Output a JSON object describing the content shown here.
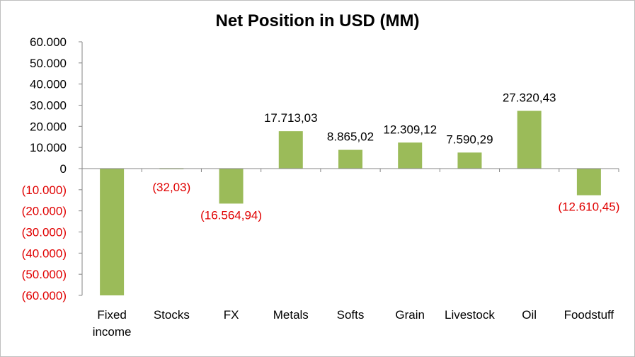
{
  "chart_data": {
    "type": "bar",
    "title": "Net Position in USD (MM)",
    "xlabel": "",
    "ylabel": "",
    "ylim": [
      -60000,
      60000
    ],
    "yticks": [
      {
        "value": 60000,
        "label": "60.000"
      },
      {
        "value": 50000,
        "label": "50.000"
      },
      {
        "value": 40000,
        "label": "40.000"
      },
      {
        "value": 30000,
        "label": "30.000"
      },
      {
        "value": 20000,
        "label": "20.000"
      },
      {
        "value": 10000,
        "label": "10.000"
      },
      {
        "value": 0,
        "label": "0"
      },
      {
        "value": -10000,
        "label": "(10.000)"
      },
      {
        "value": -20000,
        "label": "(20.000)"
      },
      {
        "value": -30000,
        "label": "(30.000)"
      },
      {
        "value": -40000,
        "label": "(40.000)"
      },
      {
        "value": -50000,
        "label": "(50.000)"
      },
      {
        "value": -60000,
        "label": "(60.000)"
      }
    ],
    "categories": [
      "Fixed income",
      "Stocks",
      "FX",
      "Metals",
      "Softs",
      "Grain",
      "Livestock",
      "Oil",
      "Foodstuff"
    ],
    "category_label_lines": [
      [
        "Fixed",
        "income"
      ],
      [
        "Stocks"
      ],
      [
        "FX"
      ],
      [
        "Metals"
      ],
      [
        "Softs"
      ],
      [
        "Grain"
      ],
      [
        "Livestock"
      ],
      [
        "Oil"
      ],
      [
        "Foodstuff"
      ]
    ],
    "values": [
      -60000,
      -32.03,
      -16564.94,
      17713.03,
      8865.02,
      12309.12,
      7590.29,
      27320.43,
      -12610.45
    ],
    "data_labels": [
      "",
      "(32,03)",
      "(16.564,94)",
      "17.713,03",
      "8.865,02",
      "12.309,12",
      "7.590,29",
      "27.320,43",
      "(12.610,45)"
    ],
    "grid": false,
    "legend": "none",
    "colors": {
      "bar": "#9bbb59",
      "positive_text": "#000000",
      "negative_text": "#e00000",
      "axis": "#868686"
    }
  }
}
